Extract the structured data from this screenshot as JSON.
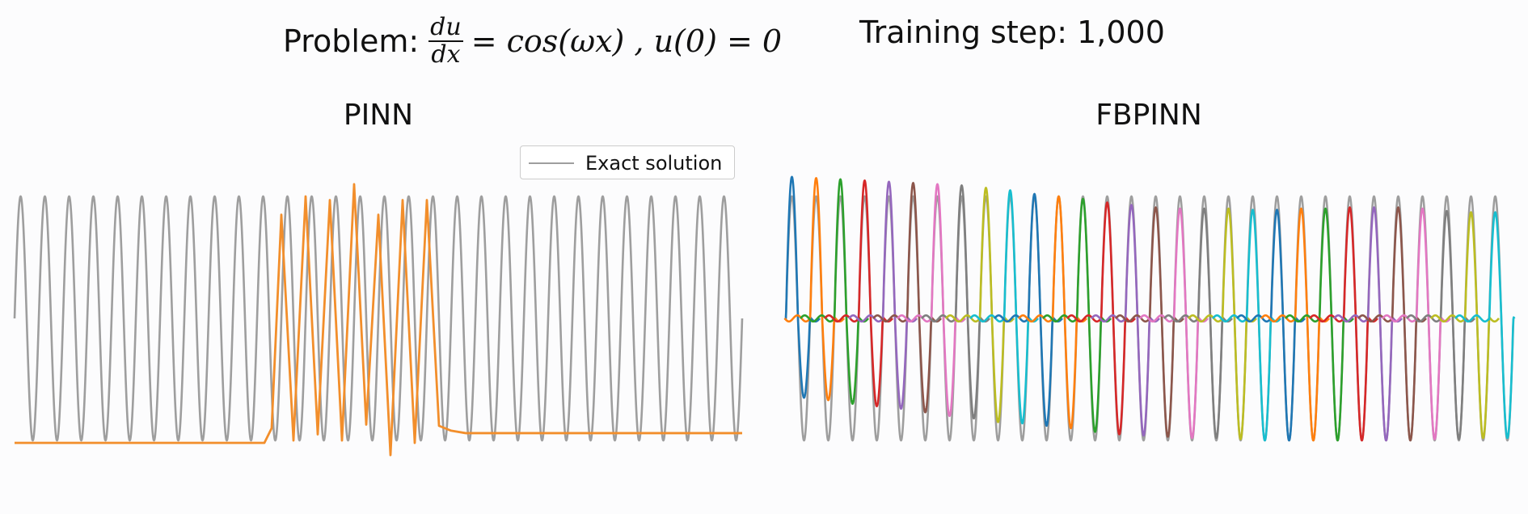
{
  "header": {
    "problem_label": "Problem:",
    "frac_num": "du",
    "frac_den": "dx",
    "rhs": "= cos(ωx) , u(0) = 0",
    "step_text": "Training step: 1,000"
  },
  "chart_data": [
    {
      "type": "line",
      "title": "PINN",
      "xlabel": "",
      "ylabel": "",
      "xlim": [
        0,
        30
      ],
      "ylim": [
        -1.15,
        1.15
      ],
      "grid": false,
      "axes_visible": false,
      "legend": {
        "placement": "top-right",
        "entries": [
          "Exact solution"
        ]
      },
      "series": [
        {
          "name": "Exact solution",
          "color": "#9e9e9e",
          "function": "sin(2π·x)",
          "x_range": [
            0,
            30
          ]
        },
        {
          "color": "#f28e2b",
          "points": [
            [
              0,
              -1.02
            ],
            [
              10.3,
              -1.02
            ],
            [
              10.6,
              -0.9
            ],
            [
              11,
              0.85
            ],
            [
              11.5,
              -1.0
            ],
            [
              12,
              1.0
            ],
            [
              12.5,
              -0.95
            ],
            [
              13,
              0.97
            ],
            [
              13.5,
              -1.0
            ],
            [
              14,
              1.1
            ],
            [
              14.5,
              -0.87
            ],
            [
              15,
              0.85
            ],
            [
              15.5,
              -1.12
            ],
            [
              16,
              0.97
            ],
            [
              16.5,
              -1.02
            ],
            [
              17,
              0.97
            ],
            [
              17.5,
              -0.88
            ],
            [
              18,
              -0.92
            ],
            [
              18.6,
              -0.94
            ],
            [
              30,
              -0.94
            ]
          ]
        }
      ]
    },
    {
      "type": "line",
      "title": "FBPINN",
      "xlabel": "",
      "ylabel": "",
      "xlim": [
        0,
        30
      ],
      "ylim": [
        -1.15,
        1.15
      ],
      "grid": false,
      "axes_visible": false,
      "series": [
        {
          "name": "Exact solution",
          "color": "#9e9e9e",
          "function": "sin(2π·x)",
          "x_range": [
            0,
            30
          ]
        }
      ],
      "subdomains": {
        "count": 30,
        "width": 1,
        "colors": [
          "#1f77b4",
          "#ff7f0e",
          "#2ca02c",
          "#d62728",
          "#9467bd",
          "#8c564b",
          "#e377c2",
          "#7f7f7f",
          "#bcbd22",
          "#17becf"
        ],
        "peaks": [
          1.16,
          1.15,
          1.14,
          1.13,
          1.12,
          1.11,
          1.1,
          1.09,
          1.07,
          1.05,
          1.02,
          1.0,
          0.98,
          0.95,
          0.93,
          0.91,
          0.9,
          0.9,
          0.9,
          0.89,
          0.89,
          0.9,
          0.9,
          0.91,
          0.91,
          0.91,
          0.9,
          0.88,
          0.87,
          0.87
        ],
        "troughs": [
          -0.65,
          -0.67,
          -0.7,
          -0.72,
          -0.74,
          -0.77,
          -0.8,
          -0.82,
          -0.85,
          -0.86,
          -0.88,
          -0.9,
          -0.93,
          -0.95,
          -0.96,
          -0.97,
          -0.98,
          -0.98,
          -0.99,
          -1.0,
          -1.0,
          -1.0,
          -1.0,
          -1.0,
          -1.0,
          -1.0,
          -0.99,
          -0.99,
          -0.98,
          -0.98
        ]
      }
    }
  ]
}
